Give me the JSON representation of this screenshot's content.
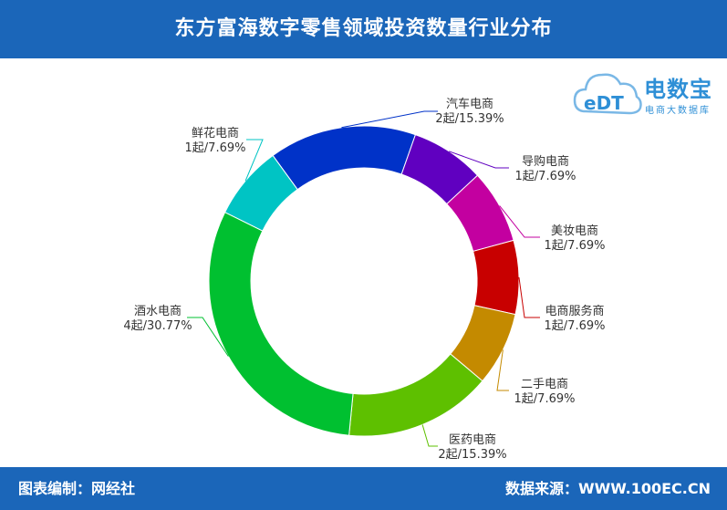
{
  "header": {
    "title": "东方富海数字零售领域投资数量行业分布"
  },
  "footer": {
    "left": "图表编制：网经社",
    "right": "数据来源：WWW.100EC.CN"
  },
  "logo": {
    "mark": "eDT",
    "brand": "电数宝",
    "tagline": "电商大数据库"
  },
  "colors": {
    "header_bg": "#1b66b9",
    "footer_bg": "#1b66b9"
  },
  "chart_data": {
    "type": "pie",
    "donut": true,
    "title": "东方富海数字零售领域投资数量行业分布",
    "unit": "起",
    "slices": [
      {
        "name": "汽车电商",
        "value": 2,
        "percent": 15.39,
        "label": "2起/15.39%",
        "color": "#0032c8"
      },
      {
        "name": "导购电商",
        "value": 1,
        "percent": 7.69,
        "label": "1起/7.69%",
        "color": "#6000c0"
      },
      {
        "name": "美妆电商",
        "value": 1,
        "percent": 7.69,
        "label": "1起/7.69%",
        "color": "#c300a0"
      },
      {
        "name": "电商服务商",
        "value": 1,
        "percent": 7.69,
        "label": "1起/7.69%",
        "color": "#c80000"
      },
      {
        "name": "二手电商",
        "value": 1,
        "percent": 7.69,
        "label": "1起/7.69%",
        "color": "#c48a00"
      },
      {
        "name": "医药电商",
        "value": 2,
        "percent": 15.39,
        "label": "2起/15.39%",
        "color": "#5ec000"
      },
      {
        "name": "酒水电商",
        "value": 4,
        "percent": 30.77,
        "label": "4起/30.77%",
        "color": "#00c030"
      },
      {
        "name": "鲜花电商",
        "value": 1,
        "percent": 7.69,
        "label": "1起/7.69%",
        "color": "#00c4c4"
      }
    ]
  }
}
